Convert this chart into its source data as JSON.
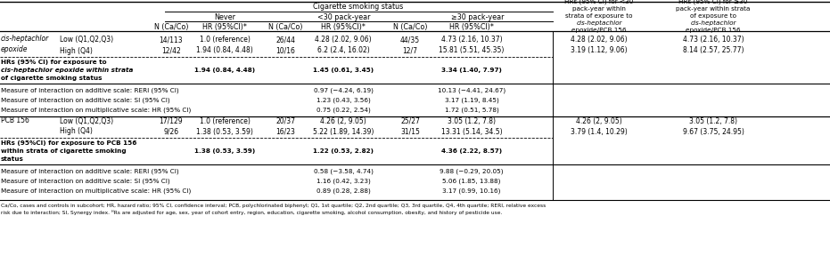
{
  "rows_section1": {
    "section_line1": "cis-heptachlor",
    "section_line2": "epoxide",
    "row1": {
      "label": "Low (Q1,Q2,Q3)",
      "n_never": "14/113",
      "hr_never": "1.0 (reference)",
      "n_lt30": "26/44",
      "hr_lt30": "4.28 (2.02, 9.06)",
      "n_ge30": "44/35",
      "hr_ge30": "4.73 (2.16, 10.37)",
      "hr_strata_lt30": "4.28 (2.02, 9.06)",
      "hr_strata_ge30": "4.73 (2.16, 10.37)"
    },
    "row2": {
      "label": "High (Q4)",
      "n_never": "12/42",
      "hr_never": "1.94 (0.84, 4.48)",
      "n_lt30": "10/16",
      "hr_lt30": "6.2 (2.4, 16.02)",
      "n_ge30": "12/7",
      "hr_ge30": "15.81 (5.51, 45.35)",
      "hr_strata_lt30": "3.19 (1.12, 9.06)",
      "hr_strata_ge30": "8.14 (2.57, 25.77)"
    },
    "bold_label": [
      "HRs (95% CI) for exposure to",
      "cis-heptachlor epoxide within strata",
      "of cigarette smoking status"
    ],
    "bold_hr_never": "1.94 (0.84, 4.48)",
    "bold_hr_lt30": "1.45 (0.61, 3.45)",
    "bold_hr_ge30": "3.34 (1.40, 7.97)",
    "int1_label": "Measure of interaction on additive scale: RERI (95% CI)",
    "int1_lt30": "0.97 (−4.24, 6.19)",
    "int1_ge30": "10.13 (−4.41, 24.67)",
    "int2_label": "Measure of interaction on additive scale: SI (95% CI)",
    "int2_lt30": "1.23 (0.43, 3.56)",
    "int2_ge30": "3.17 (1.19, 8.45)",
    "int3_label": "Measure of interaction on multiplicative scale: HR (95% CI)",
    "int3_lt30": "0.75 (0.22, 2.54)",
    "int3_ge30": "1.72 (0.51, 5.78)"
  },
  "rows_section2": {
    "section": "PCB 156",
    "row1": {
      "label": "Low (Q1,Q2,Q3)",
      "n_never": "17/129",
      "hr_never": "1.0 (reference)",
      "n_lt30": "20/37",
      "hr_lt30": "4.26 (2, 9.05)",
      "n_ge30": "25/27",
      "hr_ge30": "3.05 (1.2, 7.8)",
      "hr_strata_lt30": "4.26 (2, 9.05)",
      "hr_strata_ge30": "3.05 (1.2, 7.8)"
    },
    "row2": {
      "label": "High (Q4)",
      "n_never": "9/26",
      "hr_never": "1.38 (0.53, 3.59)",
      "n_lt30": "16/23",
      "hr_lt30": "5.22 (1.89, 14.39)",
      "n_ge30": "31/15",
      "hr_ge30": "13.31 (5.14, 34.5)",
      "hr_strata_lt30": "3.79 (1.4, 10.29)",
      "hr_strata_ge30": "9.67 (3.75, 24.95)"
    },
    "bold_label": [
      "HRs (95%CI) for exposure to PCB 156",
      "within strata of cigarette smoking",
      "status"
    ],
    "bold_hr_never": "1.38 (0.53, 3.59)",
    "bold_hr_lt30": "1.22 (0.53, 2.82)",
    "bold_hr_ge30": "4.36 (2.22, 8.57)",
    "int1_label": "Measure of interaction on additive scale: RERI (95% CI)",
    "int1_lt30": "0.58 (−3.58, 4.74)",
    "int1_ge30": "9.88 (−0.29, 20.05)",
    "int2_label": "Measure of interaction on additive scale: SI (95% CI)",
    "int2_lt30": "1.16 (0.42, 3.23)",
    "int2_ge30": "5.06 (1.85, 13.88)",
    "int3_label": "Measure of interaction on multiplicative scale: HR (95% CI)",
    "int3_lt30": "0.89 (0.28, 2.88)",
    "int3_ge30": "3.17 (0.99, 10.16)"
  },
  "footnote1": "Ca/Co, cases and controls in subcohort; HR, hazard ratio; 95% CI, confidence interval; PCB, polychlorinated biphenyl; Q1, 1st quartile; Q2, 2nd quartile; Q3, 3rd quartile, Q4, 4th quartile; RERI, relative excess",
  "footnote2": "risk due to interaction; SI, Synergy index. ᴴRs are adjusted for age, sex, year of cohort entry, region, education, cigarette smoking, alcohol consumption, obesity, and history of pesticide use."
}
